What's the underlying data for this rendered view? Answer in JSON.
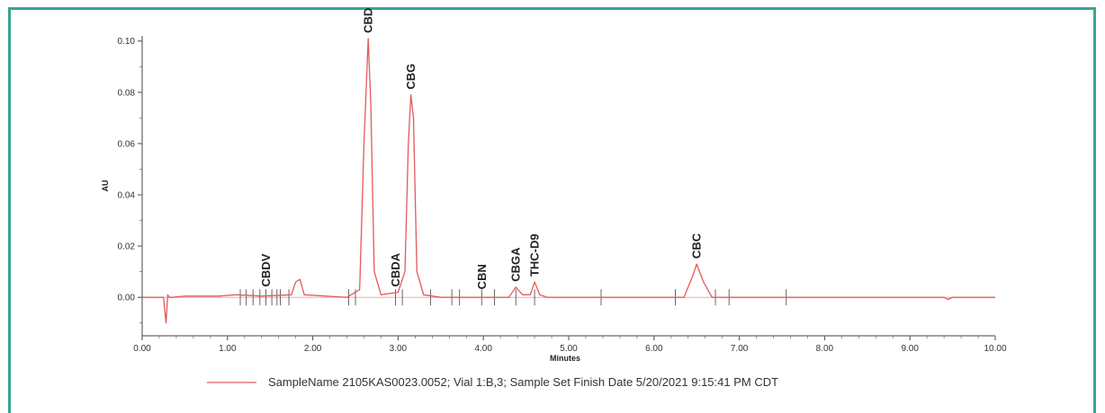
{
  "chart_data": {
    "type": "line",
    "xlabel": "Minutes",
    "ylabel": "AU",
    "xlim": [
      0,
      10
    ],
    "ylim": [
      -0.015,
      0.102
    ],
    "x_ticks": [
      "0.00",
      "1.00",
      "2.00",
      "3.00",
      "4.00",
      "5.00",
      "6.00",
      "7.00",
      "8.00",
      "9.00",
      "10.00"
    ],
    "y_ticks": [
      "0.00",
      "0.02",
      "0.04",
      "0.06",
      "0.08",
      "0.10"
    ],
    "line_color": "#e35a5a",
    "peaks": [
      {
        "label": "CBDV",
        "x": 1.45,
        "height": 0.002
      },
      {
        "label": "CBD",
        "x": 2.65,
        "height": 0.101
      },
      {
        "label": "CBDA",
        "x": 2.97,
        "height": 0.002
      },
      {
        "label": "CBG",
        "x": 3.15,
        "height": 0.079
      },
      {
        "label": "CBN",
        "x": 3.98,
        "height": 0.001
      },
      {
        "label": "CBGA",
        "x": 4.38,
        "height": 0.004
      },
      {
        "label": "THC-D9",
        "x": 4.6,
        "height": 0.006
      },
      {
        "label": "CBC",
        "x": 6.5,
        "height": 0.013
      }
    ],
    "series": [
      {
        "name": "SampleName 2105KAS0023.0052; Vial 1:B,3; Sample Set Finish Date 5/20/2021 9:15:41 PM CDT",
        "x": [
          0.0,
          0.25,
          0.28,
          0.3,
          0.32,
          0.35,
          0.5,
          0.9,
          1.1,
          1.4,
          1.75,
          1.8,
          1.85,
          1.9,
          2.4,
          2.55,
          2.6,
          2.65,
          2.68,
          2.72,
          2.8,
          3.0,
          3.08,
          3.12,
          3.15,
          3.18,
          3.22,
          3.3,
          3.5,
          4.3,
          4.38,
          4.46,
          4.55,
          4.6,
          4.66,
          4.75,
          6.35,
          6.45,
          6.5,
          6.58,
          6.68,
          7.5,
          9.4,
          9.45,
          9.5,
          10.0
        ],
        "y": [
          0.0,
          0.0,
          -0.01,
          0.001,
          0.0,
          0.0,
          0.0005,
          0.0005,
          0.001,
          0.0005,
          0.001,
          0.006,
          0.007,
          0.001,
          0.0,
          0.003,
          0.06,
          0.101,
          0.075,
          0.01,
          0.001,
          0.002,
          0.01,
          0.06,
          0.079,
          0.07,
          0.01,
          0.001,
          0.0,
          0.0,
          0.004,
          0.001,
          0.001,
          0.006,
          0.001,
          0.0,
          0.0,
          0.008,
          0.013,
          0.006,
          0.0,
          0.0,
          0.0,
          -0.0008,
          0.0,
          0.0
        ]
      }
    ],
    "grid": false,
    "legend_position": "bottom"
  }
}
